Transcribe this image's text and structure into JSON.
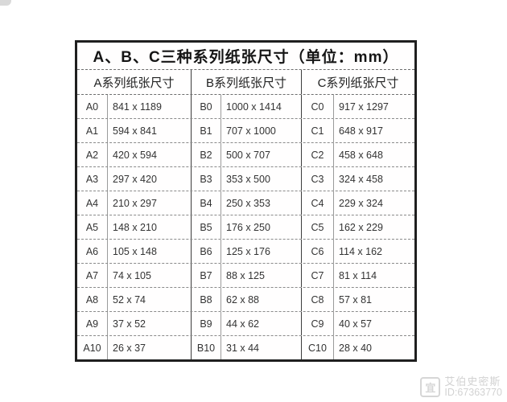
{
  "table": {
    "title": "A、B、C三种系列纸张尺寸（单位：mm）",
    "unit": "mm",
    "group_headers": [
      "A系列纸张尺寸",
      "B系列纸张尺寸",
      "C系列纸张尺寸"
    ],
    "rows": [
      [
        "A0",
        "841 x 1189",
        "B0",
        "1000 x 1414",
        "C0",
        "917 x 1297"
      ],
      [
        "A1",
        "594 x 841",
        "B1",
        "707 x 1000",
        "C1",
        "648 x 917"
      ],
      [
        "A2",
        "420 x 594",
        "B2",
        "500 x 707",
        "C2",
        "458 x 648"
      ],
      [
        "A3",
        "297 x 420",
        "B3",
        "353 x 500",
        "C3",
        "324 x 458"
      ],
      [
        "A4",
        "210 x 297",
        "B4",
        "250 x 353",
        "C4",
        "229 x 324"
      ],
      [
        "A5",
        "148 x 210",
        "B5",
        "176 x 250",
        "C5",
        "162 x 229"
      ],
      [
        "A6",
        "105 x 148",
        "B6",
        "125 x 176",
        "C6",
        "114 x 162"
      ],
      [
        "A7",
        "74 x 105",
        "B7",
        "88 x 125",
        "C7",
        "81 x 114"
      ],
      [
        "A8",
        "52 x 74",
        "B8",
        "62 x 88",
        "C8",
        "57 x 81"
      ],
      [
        "A9",
        "37 x 52",
        "B9",
        "44 x 62",
        "C9",
        "40 x 57"
      ],
      [
        "A10",
        "26 x 37",
        "B10",
        "31 x 44",
        "C10",
        "28 x 40"
      ]
    ]
  },
  "watermark": {
    "logo_char": "宜",
    "name": "艾伯史密斯",
    "id": "ID:67363770"
  },
  "colors": {
    "outer_border": "#1f1f1f",
    "grid_line": "#8a8a8a",
    "text": "#2e2e2e",
    "watermark": "#d2d2d2",
    "background": "#ffffff"
  }
}
